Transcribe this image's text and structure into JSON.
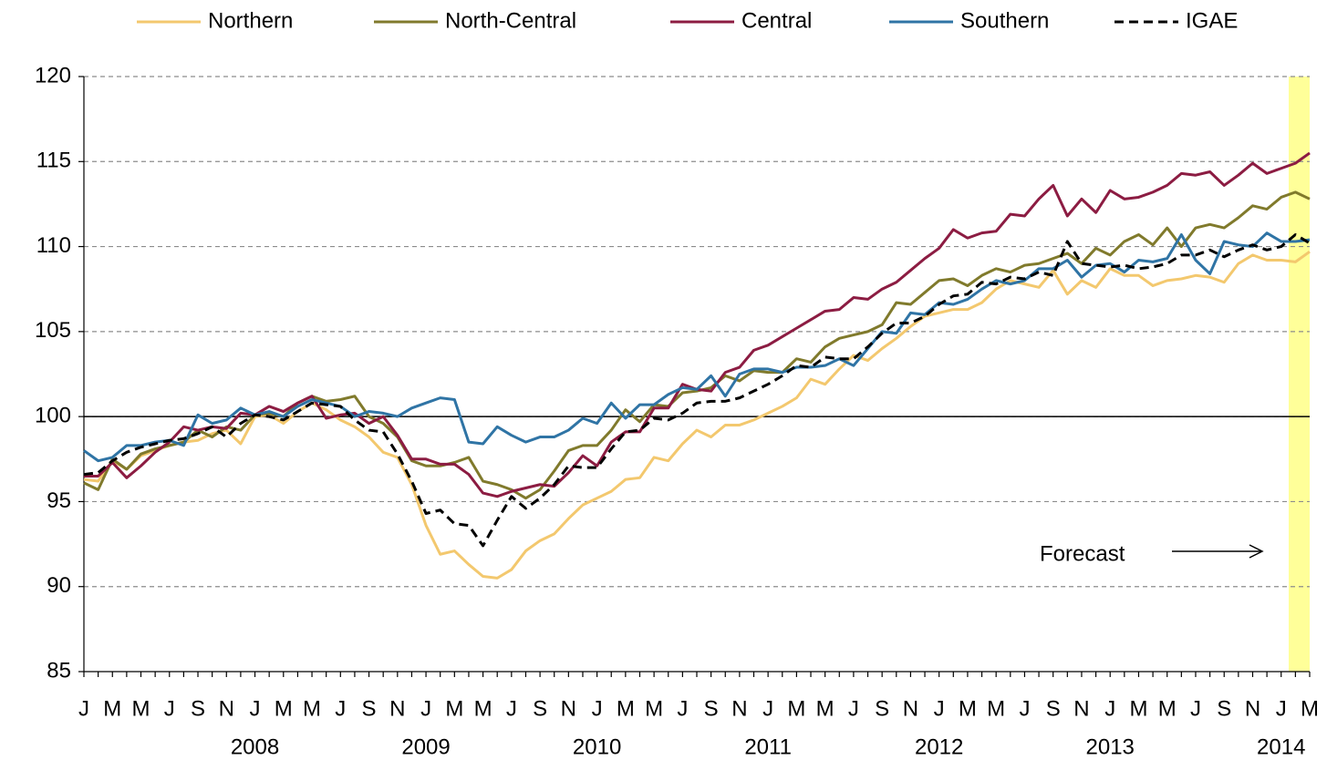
{
  "chart_data": {
    "type": "line",
    "categories": [
      "J",
      null,
      "M",
      null,
      "M",
      null,
      "J",
      null,
      "S",
      null,
      "N",
      null,
      "J",
      null,
      "M",
      null,
      "M",
      null,
      "J",
      null,
      "S",
      null,
      "N",
      null,
      "J",
      null,
      "M",
      null,
      "M",
      null,
      "J",
      null,
      "S",
      null,
      "N",
      null,
      "J",
      null,
      "M",
      null,
      "M",
      null,
      "J",
      null,
      "S",
      null,
      "N",
      null,
      "J",
      null,
      "M",
      null,
      "M",
      null,
      "J",
      null,
      "S",
      null,
      "N",
      null,
      "J",
      null,
      "M",
      null,
      "M",
      null,
      "J",
      null,
      "S",
      null,
      "N",
      null,
      "J",
      null,
      "M",
      null,
      "M",
      null,
      "J",
      null,
      "S",
      null,
      "N",
      null,
      "J",
      null,
      "M"
    ],
    "year_labels": [
      "2008",
      "2009",
      "2010",
      "2011",
      "2012",
      "2013",
      "2014"
    ],
    "ylim": [
      85,
      120
    ],
    "yticks": [
      85,
      90,
      95,
      100,
      105,
      110,
      115,
      120
    ],
    "grid": true,
    "reference_line": 100,
    "legend": "top",
    "annotation": "Forecast",
    "series": [
      {
        "name": "Northern",
        "color": "#f3c86e",
        "dash": false,
        "values": [
          96.3,
          96.2,
          97.4,
          96.9,
          97.7,
          98.0,
          98.3,
          98.5,
          98.6,
          99.0,
          99.2,
          98.4,
          100.0,
          100.1,
          99.6,
          100.3,
          100.8,
          100.4,
          99.8,
          99.4,
          98.8,
          97.9,
          97.6,
          96.0,
          93.6,
          91.9,
          92.1,
          91.3,
          90.6,
          90.5,
          91.0,
          92.1,
          92.7,
          93.1,
          94.0,
          94.8,
          95.2,
          95.6,
          96.3,
          96.4,
          97.6,
          97.4,
          98.4,
          99.2,
          98.8,
          99.5,
          99.5,
          99.8,
          100.2,
          100.6,
          101.1,
          102.2,
          101.9,
          102.8,
          103.6,
          103.3,
          104.0,
          104.6,
          105.3,
          105.9,
          106.1,
          106.3,
          106.3,
          106.7,
          107.5,
          108.0,
          107.8,
          107.6,
          108.6,
          107.2,
          108.0,
          107.6,
          108.7,
          108.3,
          108.3,
          107.7,
          108.0,
          108.1,
          108.3,
          108.2,
          107.9,
          109.0,
          109.5,
          109.2,
          109.2,
          109.1,
          109.7
        ]
      },
      {
        "name": "North-Central",
        "color": "#807a2c",
        "dash": false,
        "values": [
          96.1,
          95.7,
          97.5,
          96.9,
          97.8,
          98.1,
          98.3,
          98.5,
          99.2,
          98.8,
          99.4,
          99.2,
          100.1,
          100.2,
          100.0,
          100.8,
          101.2,
          100.9,
          101.0,
          101.2,
          100.0,
          99.6,
          98.8,
          97.4,
          97.1,
          97.1,
          97.3,
          97.6,
          96.2,
          96.0,
          95.7,
          95.2,
          95.7,
          96.8,
          98.0,
          98.3,
          98.3,
          99.2,
          100.4,
          99.7,
          100.7,
          100.6,
          101.4,
          101.5,
          101.7,
          102.4,
          102.1,
          102.7,
          102.6,
          102.6,
          103.4,
          103.2,
          104.1,
          104.6,
          104.8,
          105.0,
          105.4,
          106.7,
          106.6,
          107.3,
          108.0,
          108.1,
          107.7,
          108.3,
          108.7,
          108.5,
          108.9,
          109.0,
          109.3,
          109.6,
          109.0,
          109.9,
          109.5,
          110.3,
          110.7,
          110.1,
          111.1,
          110.0,
          111.1,
          111.3,
          111.1,
          111.7,
          112.4,
          112.2,
          112.9,
          113.2,
          112.8
        ]
      },
      {
        "name": "Central",
        "color": "#8c1c42",
        "dash": false,
        "values": [
          96.5,
          96.5,
          97.3,
          96.4,
          97.1,
          97.9,
          98.5,
          99.4,
          99.2,
          99.4,
          99.3,
          100.2,
          100.1,
          100.6,
          100.3,
          100.8,
          101.2,
          99.9,
          100.1,
          100.2,
          99.6,
          100.0,
          98.9,
          97.5,
          97.5,
          97.2,
          97.2,
          96.6,
          95.5,
          95.3,
          95.6,
          95.8,
          96.0,
          95.9,
          96.7,
          97.7,
          97.1,
          98.5,
          99.1,
          99.1,
          100.5,
          100.5,
          101.9,
          101.6,
          101.5,
          102.6,
          102.9,
          103.9,
          104.2,
          104.7,
          105.2,
          105.7,
          106.2,
          106.3,
          107.0,
          106.9,
          107.5,
          107.9,
          108.6,
          109.3,
          109.9,
          111.0,
          110.5,
          110.8,
          110.9,
          111.9,
          111.8,
          112.8,
          113.6,
          111.8,
          112.8,
          112.0,
          113.3,
          112.8,
          112.9,
          113.2,
          113.6,
          114.3,
          114.2,
          114.4,
          113.6,
          114.2,
          114.9,
          114.3,
          114.6,
          114.9,
          115.5
        ]
      },
      {
        "name": "Southern",
        "color": "#2f74a5",
        "dash": false,
        "values": [
          98.0,
          97.4,
          97.6,
          98.3,
          98.3,
          98.5,
          98.6,
          98.3,
          100.1,
          99.6,
          99.8,
          100.5,
          100.1,
          100.3,
          100.0,
          100.6,
          101.0,
          100.8,
          100.6,
          100.0,
          100.3,
          100.2,
          100.0,
          100.5,
          100.8,
          101.1,
          101.0,
          98.5,
          98.4,
          99.4,
          98.9,
          98.5,
          98.8,
          98.8,
          99.2,
          99.9,
          99.6,
          100.8,
          99.9,
          100.7,
          100.7,
          101.3,
          101.7,
          101.6,
          102.4,
          101.2,
          102.5,
          102.8,
          102.8,
          102.6,
          102.9,
          102.9,
          103.0,
          103.4,
          103.0,
          104.0,
          105.0,
          104.9,
          106.1,
          106.0,
          106.7,
          106.6,
          106.9,
          107.5,
          108.0,
          107.8,
          108.0,
          108.7,
          108.7,
          109.2,
          108.2,
          108.9,
          109.0,
          108.5,
          109.2,
          109.1,
          109.3,
          110.7,
          109.2,
          108.4,
          110.3,
          110.1,
          110.0,
          110.8,
          110.3,
          110.3,
          110.4
        ]
      },
      {
        "name": "IGAE",
        "color": "#000000",
        "dash": true,
        "values": [
          96.6,
          96.7,
          97.4,
          97.9,
          98.2,
          98.4,
          98.6,
          98.7,
          99.0,
          99.4,
          98.8,
          99.6,
          100.1,
          100.0,
          99.8,
          100.3,
          100.8,
          100.7,
          100.6,
          99.8,
          99.2,
          99.1,
          97.8,
          96.2,
          94.3,
          94.5,
          93.7,
          93.6,
          92.4,
          93.9,
          95.3,
          94.6,
          95.2,
          96.0,
          97.1,
          97.0,
          97.0,
          98.1,
          99.1,
          99.2,
          99.9,
          99.8,
          100.2,
          100.8,
          100.9,
          100.9,
          101.1,
          101.5,
          101.9,
          102.4,
          103.0,
          102.9,
          103.5,
          103.4,
          103.4,
          104.1,
          104.9,
          105.5,
          105.5,
          105.9,
          106.6,
          107.1,
          107.2,
          107.9,
          107.8,
          108.2,
          108.1,
          108.5,
          108.3,
          110.3,
          109.0,
          108.9,
          108.8,
          108.9,
          108.7,
          108.8,
          109.0,
          109.5,
          109.5,
          109.8,
          109.4,
          109.8,
          110.1,
          109.8,
          110.0,
          110.7,
          110.2
        ]
      }
    ]
  }
}
